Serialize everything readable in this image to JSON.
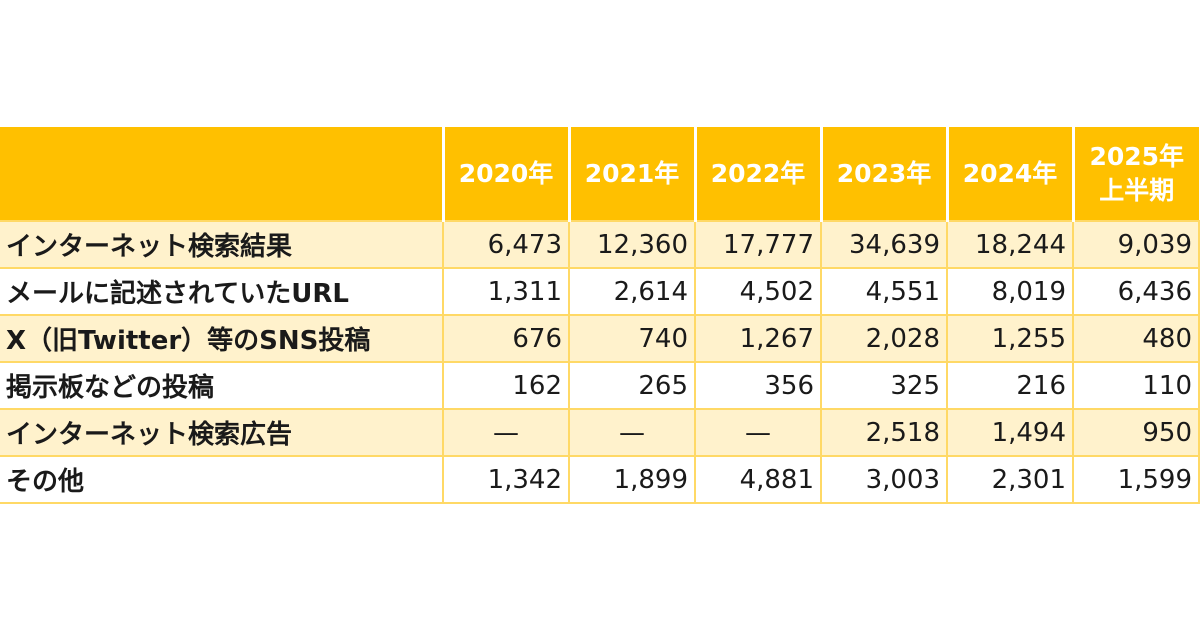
{
  "table": {
    "columns": [
      "",
      "2020年",
      "2021年",
      "2022年",
      "2023年",
      "2024年",
      "2025年\n上半期"
    ],
    "column_last_line1": "2025年",
    "column_last_line2": "上半期",
    "rows": [
      {
        "label": "インターネット検索結果",
        "values": [
          "6,473",
          "12,360",
          "17,777",
          "34,639",
          "18,244",
          "9,039"
        ]
      },
      {
        "label": "メールに記述されていたURL",
        "values": [
          "1,311",
          "2,614",
          "4,502",
          "4,551",
          "8,019",
          "6,436"
        ]
      },
      {
        "label": "X（旧Twitter）等のSNS投稿",
        "values": [
          "676",
          "740",
          "1,267",
          "2,028",
          "1,255",
          "480"
        ]
      },
      {
        "label": "掲示板などの投稿",
        "values": [
          "162",
          "265",
          "356",
          "325",
          "216",
          "110"
        ]
      },
      {
        "label": "インターネット検索広告",
        "values": [
          "—",
          "—",
          "—",
          "2,518",
          "1,494",
          "950"
        ]
      },
      {
        "label": "その他",
        "values": [
          "1,342",
          "1,899",
          "4,881",
          "3,003",
          "2,301",
          "1,599"
        ]
      }
    ]
  },
  "colors": {
    "header": "#FFC000",
    "row_alt": "#FFF2CC",
    "border": "#FFD966"
  }
}
